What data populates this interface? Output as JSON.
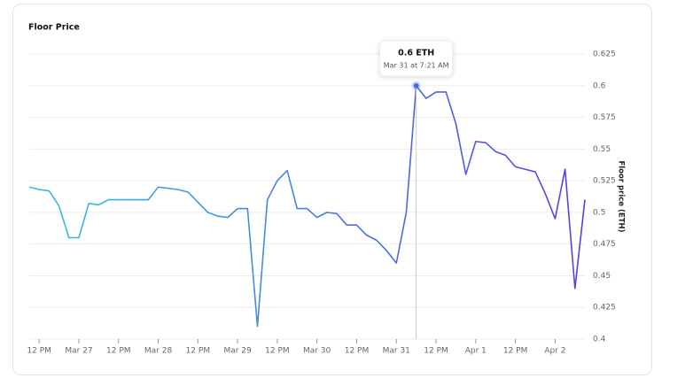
{
  "chart_data": {
    "type": "line",
    "title": "Floor Price",
    "y_label": "Floor price (ETH)",
    "categories": [
      null,
      "12 PM",
      null,
      null,
      null,
      "Mar 27",
      null,
      null,
      null,
      "12 PM",
      null,
      null,
      null,
      "Mar 28",
      null,
      null,
      null,
      "12 PM",
      null,
      null,
      null,
      "Mar 29",
      null,
      null,
      null,
      "12 PM",
      null,
      null,
      null,
      "Mar 30",
      null,
      null,
      null,
      "12 PM",
      null,
      null,
      null,
      "Mar 31",
      null,
      null,
      null,
      "12 PM",
      null,
      null,
      null,
      "Apr 1",
      null,
      null,
      null,
      "12 PM",
      null,
      null,
      null,
      "Apr 2",
      null,
      null,
      null
    ],
    "series": [
      {
        "name": "Floor price",
        "colors": [
          "#38c0e0",
          "#5a3ee0"
        ],
        "values": [
          0.52,
          0.518,
          0.517,
          0.505,
          0.48,
          0.48,
          0.507,
          0.506,
          0.51,
          0.51,
          0.51,
          0.51,
          0.51,
          0.52,
          0.519,
          0.518,
          0.516,
          0.508,
          0.5,
          0.497,
          0.496,
          0.503,
          0.503,
          0.41,
          0.51,
          0.525,
          0.533,
          0.503,
          0.503,
          0.496,
          0.5,
          0.499,
          0.49,
          0.49,
          0.482,
          0.478,
          0.47,
          0.46,
          0.5,
          0.6,
          0.59,
          0.595,
          0.595,
          0.57,
          0.53,
          0.556,
          0.555,
          0.548,
          0.545,
          0.536,
          0.534,
          0.532,
          0.515,
          0.495,
          0.534,
          0.44,
          0.51
        ]
      }
    ],
    "tooltip": {
      "title": "0.6 ETH",
      "subtitle": "Mar 31 at 7:21 AM"
    },
    "ylim": [
      0.4,
      0.625
    ],
    "yticks": [
      0.4,
      0.425,
      0.45,
      0.475,
      0.5,
      0.525,
      0.55,
      0.575,
      0.6,
      0.625
    ],
    "grid": true
  }
}
